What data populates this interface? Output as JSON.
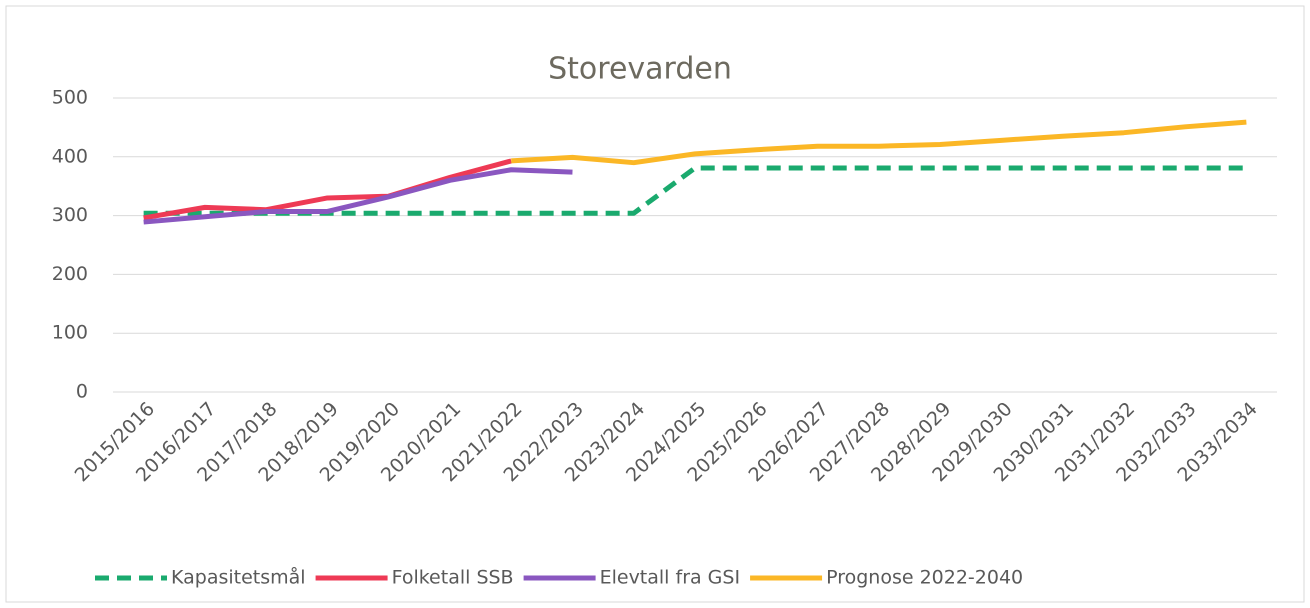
{
  "chart_data": {
    "type": "line",
    "title": "Storevarden",
    "categories": [
      "2015/2016",
      "2016/2017",
      "2017/2018",
      "2018/2019",
      "2019/2020",
      "2020/2021",
      "2021/2022",
      "2022/2023",
      "2023/2024",
      "2024/2025",
      "2025/2026",
      "2026/2027",
      "2027/2028",
      "2028/2029",
      "2029/2030",
      "2030/2031",
      "2031/2032",
      "2032/2033",
      "2033/2034"
    ],
    "series": [
      {
        "name": "Kapasitetsmål",
        "color": "#1aaa6e",
        "dashed": true,
        "values": [
          304,
          304,
          304,
          304,
          304,
          304,
          304,
          304,
          304,
          381,
          381,
          381,
          381,
          381,
          381,
          381,
          381,
          381,
          381
        ]
      },
      {
        "name": "Folketall SSB",
        "color": "#ee3a55",
        "values": [
          296,
          314,
          310,
          330,
          333,
          365,
          393,
          null,
          null,
          null,
          null,
          null,
          null,
          null,
          null,
          null,
          null,
          null,
          null
        ]
      },
      {
        "name": "Elevtall fra GSI",
        "color": "#8a57c0",
        "values": [
          289,
          298,
          307,
          307,
          332,
          360,
          378,
          374,
          null,
          null,
          null,
          null,
          null,
          null,
          null,
          null,
          null,
          null,
          null
        ]
      },
      {
        "name": "Prognose 2022-2040",
        "color": "#fbb726",
        "values": [
          null,
          null,
          null,
          null,
          null,
          null,
          393,
          399,
          390,
          405,
          412,
          418,
          418,
          421,
          428,
          435,
          441,
          451,
          459
        ]
      }
    ],
    "ylim": [
      0,
      500
    ],
    "yticks": [
      0,
      100,
      200,
      300,
      400,
      500
    ],
    "grid": true,
    "legend": "bottom"
  }
}
